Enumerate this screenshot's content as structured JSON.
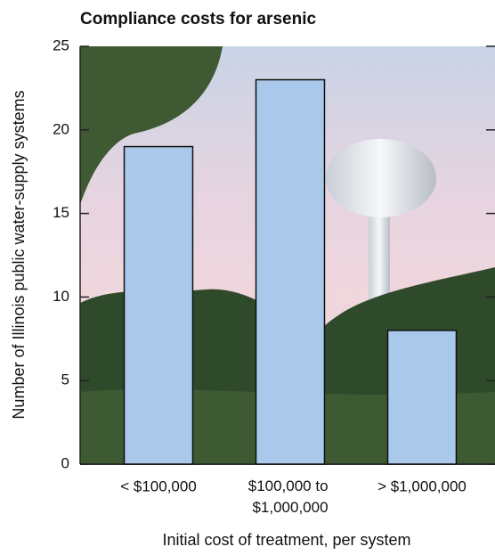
{
  "chart_data": {
    "type": "bar",
    "title": "Compliance costs for arsenic",
    "categories": [
      "< $100,000",
      "$100,000 to $1,000,000",
      "> $1,000,000"
    ],
    "values": [
      19,
      23,
      8
    ],
    "color": "#a9c8ea",
    "ylim": [
      0,
      25
    ],
    "yticks": [
      0,
      5,
      10,
      15,
      20,
      25
    ],
    "y_label": "Number of Illinois public water-supply systems",
    "x_label": "Initial cost of treatment, per system"
  }
}
